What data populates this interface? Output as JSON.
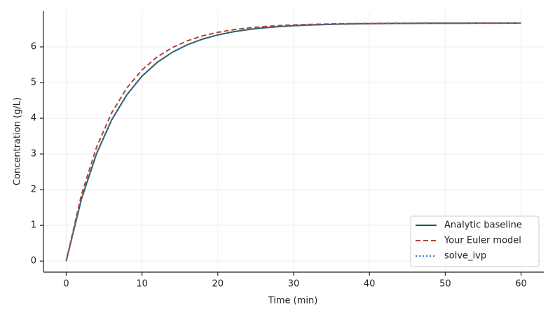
{
  "chart_data": {
    "type": "line",
    "xlabel": "Time (min)",
    "ylabel": "Concentration (g/L)",
    "x": [
      0,
      2,
      4,
      6,
      8,
      10,
      12,
      14,
      16,
      18,
      20,
      22,
      24,
      26,
      28,
      30,
      32,
      34,
      36,
      38,
      40,
      42,
      44,
      46,
      48,
      50,
      52,
      54,
      56,
      58,
      60
    ],
    "series": [
      {
        "name": "Analytic baseline",
        "color": "#1d5c4d",
        "linestyle": "solid",
        "values": [
          0,
          1.728,
          3.008,
          3.956,
          4.659,
          5.179,
          5.565,
          5.85,
          6.062,
          6.219,
          6.335,
          6.421,
          6.485,
          6.532,
          6.567,
          6.593,
          6.612,
          6.626,
          6.637,
          6.645,
          6.65,
          6.654,
          6.657,
          6.659,
          6.661,
          6.662,
          6.663,
          6.664,
          6.665,
          6.665,
          6.666
        ]
      },
      {
        "name": "Your Euler model",
        "color": "#b5452f",
        "linestyle": "dashed",
        "values": [
          0,
          1.85,
          3.187,
          4.153,
          4.85,
          5.354,
          5.718,
          5.982,
          6.172,
          6.309,
          6.408,
          6.48,
          6.532,
          6.57,
          6.596,
          6.616,
          6.63,
          6.64,
          6.648,
          6.653,
          6.657,
          6.66,
          6.662,
          6.663,
          6.664,
          6.665,
          6.665,
          6.666,
          6.666,
          6.666,
          6.667
        ]
      },
      {
        "name": "solve_ivp",
        "color": "#4a6bbf",
        "linestyle": "dotted",
        "values": [
          0,
          1.728,
          3.008,
          3.956,
          4.659,
          5.179,
          5.565,
          5.85,
          6.062,
          6.219,
          6.335,
          6.421,
          6.485,
          6.532,
          6.567,
          6.593,
          6.612,
          6.626,
          6.637,
          6.645,
          6.65,
          6.654,
          6.657,
          6.659,
          6.661,
          6.662,
          6.663,
          6.664,
          6.665,
          6.665,
          6.666
        ]
      }
    ],
    "xlim": [
      -3,
      63
    ],
    "ylim": [
      -0.31,
      7.0
    ],
    "xticks": [
      0,
      10,
      20,
      30,
      40,
      50,
      60
    ],
    "yticks": [
      0,
      1,
      2,
      3,
      4,
      5,
      6
    ],
    "grid": true,
    "legend": "lower right"
  }
}
